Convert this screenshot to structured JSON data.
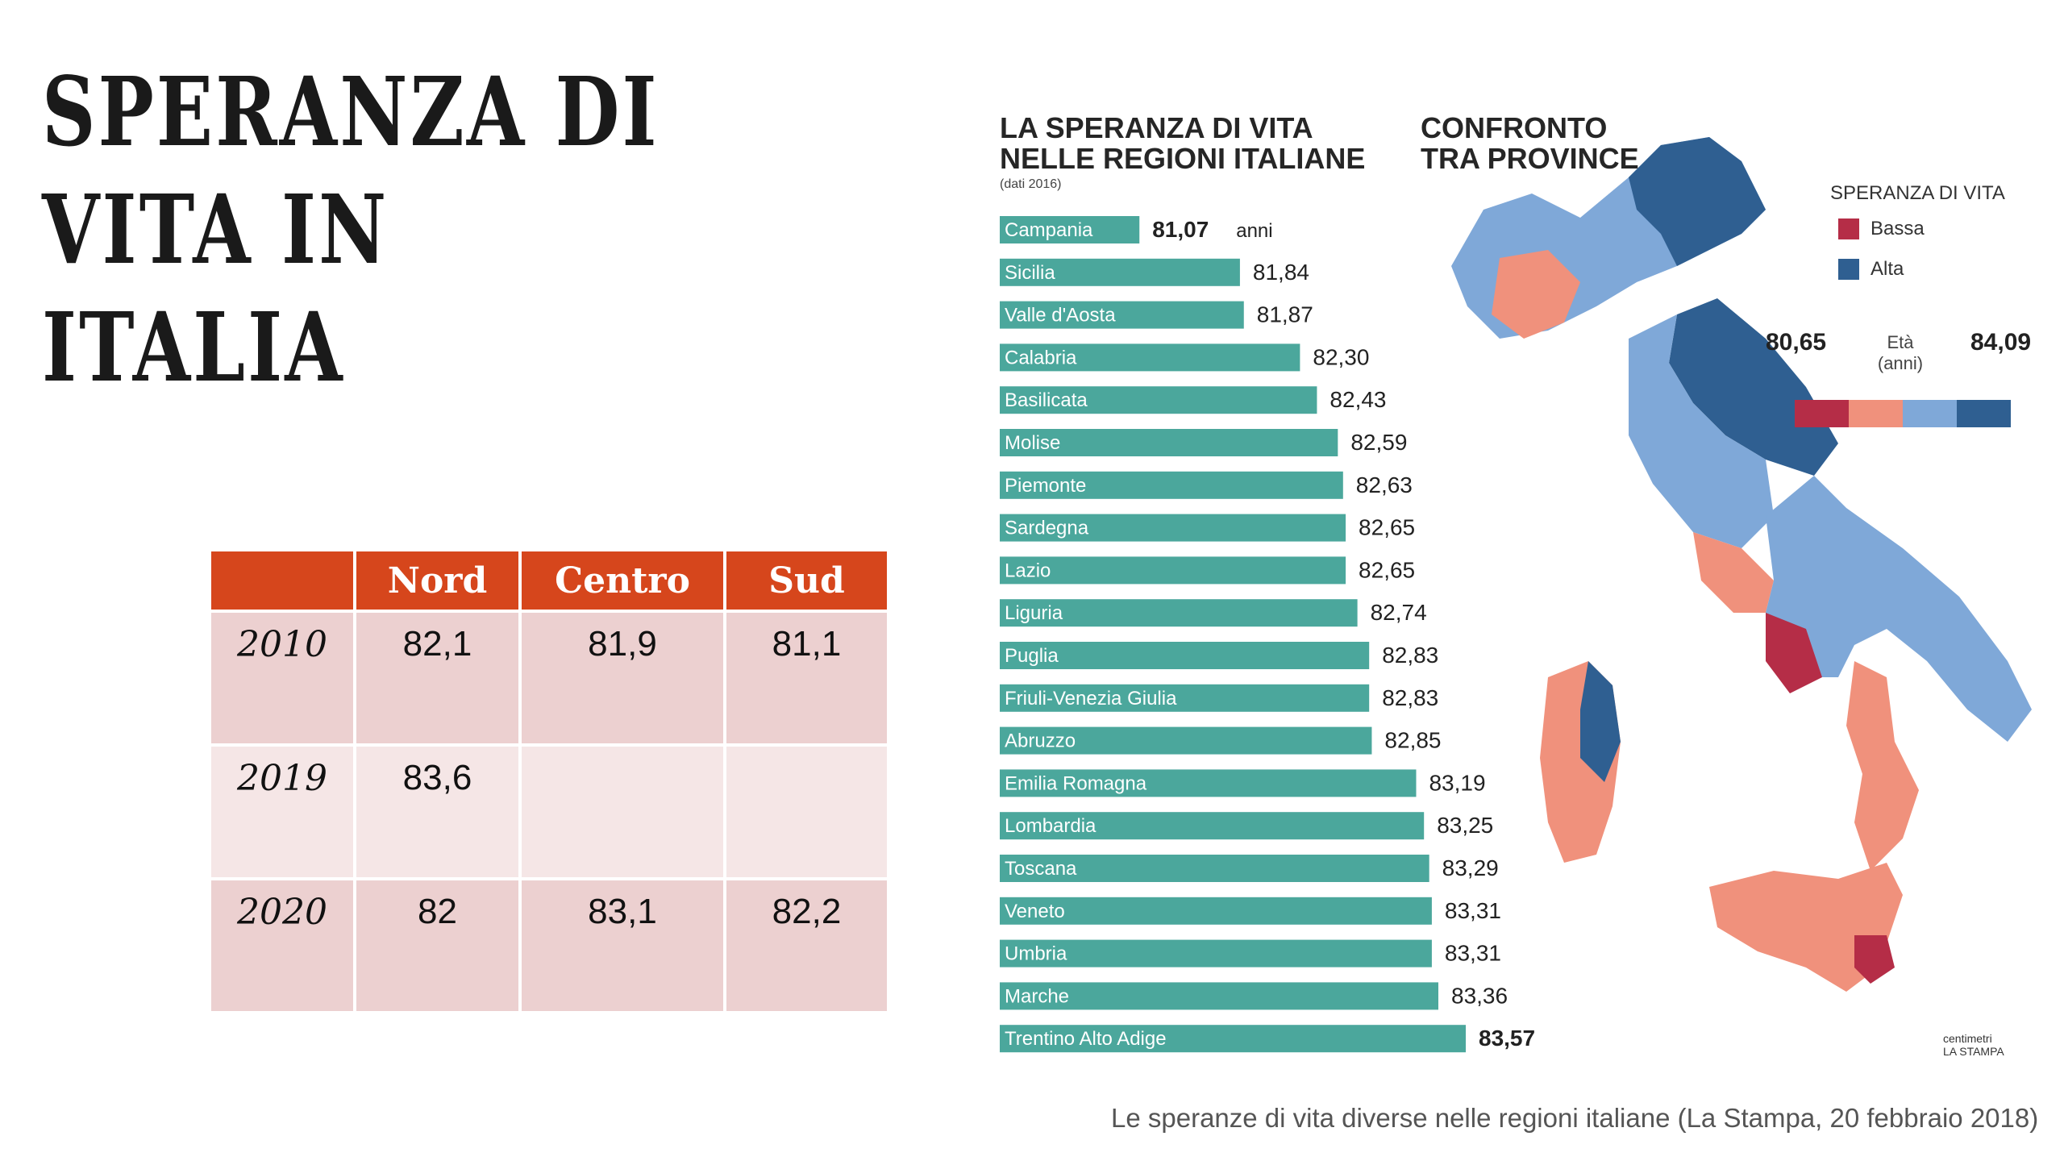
{
  "slide": {
    "title_line1": "SPERANZA DI VITA IN",
    "title_line2": "ITALIA",
    "caption": "Le speranze di vita diverse nelle regioni italiane (La Stampa, 20 febbraio 2018)"
  },
  "table": {
    "headers": [
      "",
      "Nord",
      "Centro",
      "Sud"
    ],
    "rows": [
      {
        "year": "2010",
        "nord": "82,1",
        "centro": "81,9",
        "sud": "81,1"
      },
      {
        "year": "2019",
        "nord": "83,6",
        "centro": "",
        "sud": ""
      },
      {
        "year": "2020",
        "nord": "82",
        "centro": "83,1",
        "sud": "82,2"
      }
    ],
    "colors": {
      "header": "#d6461c",
      "row_odd": "#ecd0d0",
      "row_even": "#f5e6e6"
    }
  },
  "infographic": {
    "chart_title_line1": "LA SPERANZA DI VITA",
    "chart_title_line2": "NELLE REGIONI ITALIANE",
    "chart_note": "(dati 2016)",
    "map_title_line1": "CONFRONTO",
    "map_title_line2": "TRA PROVINCE",
    "legend_title": "SPERANZA DI VITA",
    "legend_low": "Bassa",
    "legend_high": "Alta",
    "scale_min": "80,65",
    "scale_max": "84,09",
    "scale_label_line1": "Età",
    "scale_label_line2": "(anni)",
    "source_line1": "centimetri",
    "source_line2": "LA STAMPA",
    "colors": {
      "bar": "#4ba79c",
      "low": "#b52d47",
      "mid_low": "#f0917c",
      "mid_high": "#7fa8d8",
      "high": "#2f5f91"
    }
  },
  "chart_data": {
    "type": "bar",
    "orientation": "horizontal",
    "title": "LA SPERANZA DI VITA NELLE REGIONI ITALIANE",
    "subtitle": "(dati 2016)",
    "first_value_unit": "anni",
    "categories": [
      "Campania",
      "Sicilia",
      "Valle d'Aosta",
      "Calabria",
      "Basilicata",
      "Molise",
      "Piemonte",
      "Sardegna",
      "Lazio",
      "Liguria",
      "Puglia",
      "Friuli-Venezia Giulia",
      "Abruzzo",
      "Emilia Romagna",
      "Lombardia",
      "Toscana",
      "Veneto",
      "Umbria",
      "Marche",
      "Trentino Alto Adige"
    ],
    "values": [
      81.07,
      81.84,
      81.87,
      82.3,
      82.43,
      82.59,
      82.63,
      82.65,
      82.65,
      82.74,
      82.83,
      82.83,
      82.85,
      83.19,
      83.25,
      83.29,
      83.31,
      83.31,
      83.36,
      83.57
    ],
    "value_labels": [
      "81,07",
      "81,84",
      "81,87",
      "82,30",
      "82,43",
      "82,59",
      "82,63",
      "82,65",
      "82,65",
      "82,74",
      "82,83",
      "82,83",
      "82,85",
      "83,19",
      "83,25",
      "83,29",
      "83,31",
      "83,31",
      "83,36",
      "83,57"
    ],
    "xlim": [
      80.0,
      83.57
    ],
    "grid": false,
    "legend": "none"
  }
}
